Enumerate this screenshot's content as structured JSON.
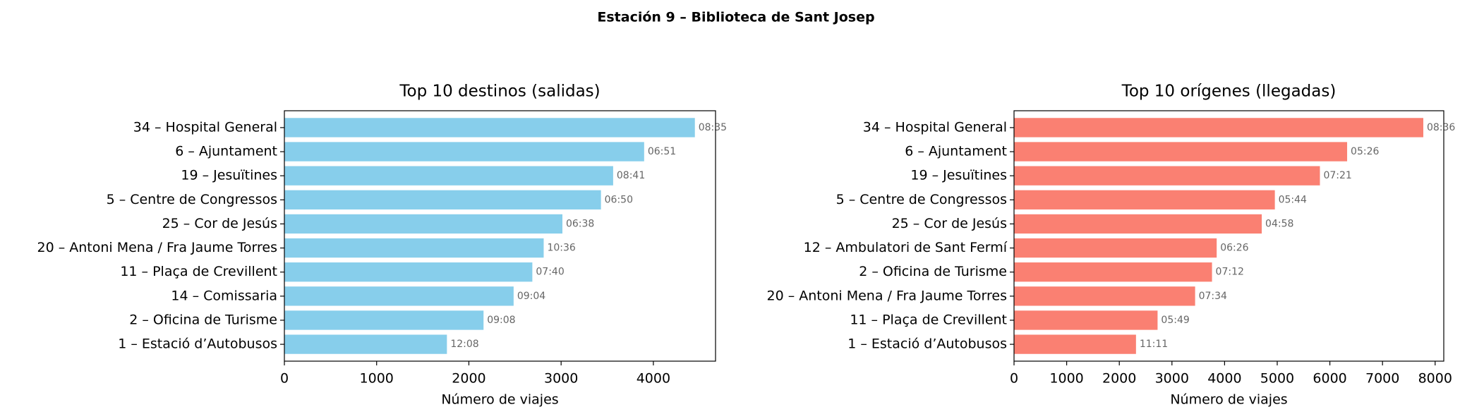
{
  "title": "Estación 9 – Biblioteca de Sant Josep",
  "chart_data": [
    {
      "type": "barh",
      "title": "Top 10 destinos (salidas)",
      "xlabel": "Número de viajes",
      "color": "#87ceeb",
      "categories": [
        "34 – Hospital General",
        "6 – Ajuntament",
        "19 – Jesuïtines",
        "5 – Centre de Congressos",
        "25 – Cor de Jesús",
        "20 – Antoni Mena / Fra Jaume Torres",
        "11 – Plaça de Crevillent",
        "14 – Comissaria",
        "2 – Oficina de Turisme",
        "1 – Estació d’Autobusos"
      ],
      "values": [
        4450,
        3900,
        3564,
        3432,
        3014,
        2811,
        2688,
        2485,
        2159,
        1762
      ],
      "time_labels": [
        "08:35",
        "06:51",
        "08:41",
        "06:50",
        "06:38",
        "10:36",
        "07:40",
        "09:04",
        "09:08",
        "12:08"
      ],
      "xlim": [
        0,
        4674
      ],
      "xticks": [
        0,
        1000,
        2000,
        3000,
        4000
      ]
    },
    {
      "type": "barh",
      "title": "Top 10 orígenes (llegadas)",
      "xlabel": "Número de viajes",
      "color": "#fa8072",
      "categories": [
        "34 – Hospital General",
        "6 – Ajuntament",
        "19 – Jesuïtines",
        "5 – Centre de Congressos",
        "25 – Cor de Jesús",
        "12 – Ambulatori de Sant Fermí",
        "2 – Oficina de Turisme",
        "20 – Antoni Mena / Fra Jaume Torres",
        "11 – Plaça de Crevillent",
        "1 – Estació d’Autobusos"
      ],
      "values": [
        7775,
        6328,
        5811,
        4955,
        4706,
        3850,
        3761,
        3440,
        2727,
        2317
      ],
      "time_labels": [
        "08:36",
        "05:26",
        "07:21",
        "05:44",
        "04:58",
        "06:26",
        "07:12",
        "07:34",
        "05:49",
        "11:11"
      ],
      "xlim": [
        0,
        8164
      ],
      "xticks": [
        0,
        1000,
        2000,
        3000,
        4000,
        5000,
        6000,
        7000,
        8000
      ]
    }
  ]
}
